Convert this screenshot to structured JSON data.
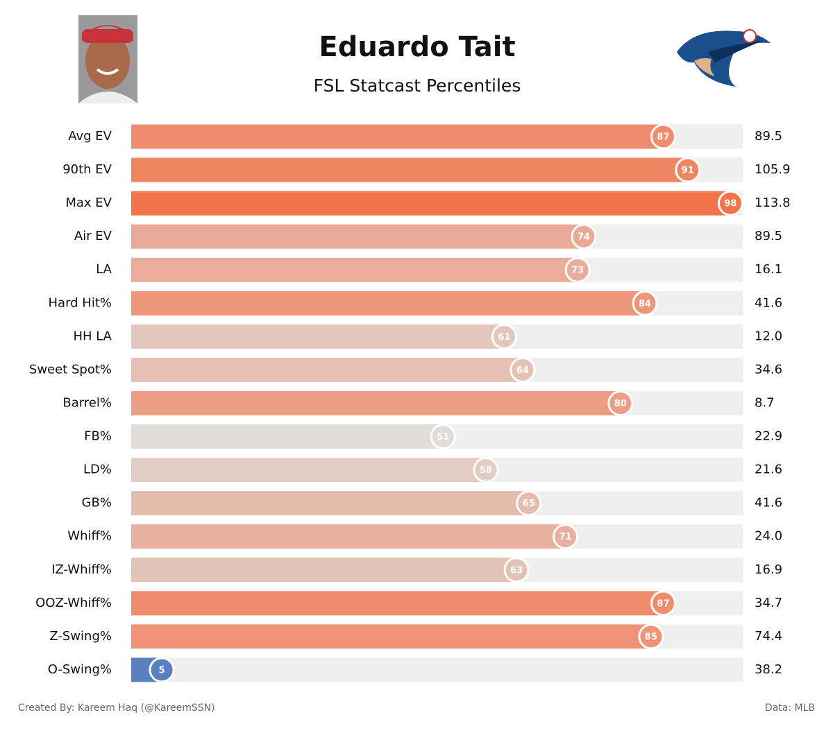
{
  "chart_data": {
    "type": "barh",
    "title": "Eduardo Tait",
    "subtitle": "FSL Statcast Percentiles",
    "categories": [
      "Avg EV",
      "90th EV",
      "Max EV",
      "Air EV",
      "LA",
      "Hard Hit%",
      "HH LA",
      "Sweet Spot%",
      "Barrel%",
      "FB%",
      "LD%",
      "GB%",
      "Whiff%",
      "IZ-Whiff%",
      "OOZ-Whiff%",
      "Z-Swing%",
      "O-Swing%"
    ],
    "values": [
      87,
      91,
      98,
      74,
      73,
      84,
      61,
      64,
      80,
      51,
      58,
      65,
      71,
      63,
      87,
      85,
      5
    ],
    "stat_values": [
      "89.5",
      "105.9",
      "113.8",
      "89.5",
      "16.1",
      "41.6",
      "12.0",
      "34.6",
      "8.7",
      "22.9",
      "21.6",
      "41.6",
      "24.0",
      "16.9",
      "34.7",
      "74.4",
      "38.2"
    ],
    "colors": [
      "#ef8c6e",
      "#f08563",
      "#f2744a",
      "#e9ab97",
      "#e9ad99",
      "#ed977a",
      "#e3c7bd",
      "#e5c0b3",
      "#eb9e84",
      "#e0dcdb",
      "#e2ccc4",
      "#e5bdaf",
      "#e8b09e",
      "#e4c3b7",
      "#ef8c6e",
      "#ee9377",
      "#5a80c0"
    ],
    "xlim": [
      0,
      100
    ],
    "footer_left": "Created By: Kareem Haq (@KareemSSN)",
    "footer_right": "Data: MLB"
  }
}
